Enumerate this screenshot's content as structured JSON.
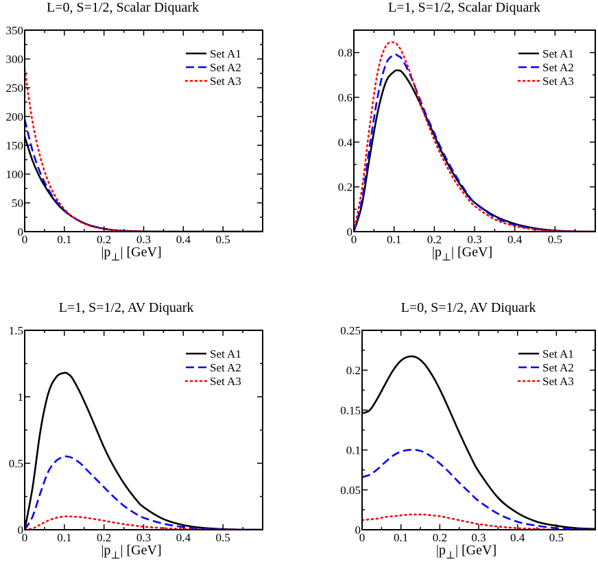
{
  "chart_data": [
    {
      "id": "p1",
      "type": "line",
      "title": "L=0, S=1/2, Scalar Diquark",
      "xlabel": "|p⊥| [GeV]",
      "ylabel": "",
      "xlim": [
        0,
        0.6
      ],
      "ylim": [
        0,
        350
      ],
      "xticks": [
        0,
        0.1,
        0.2,
        0.3,
        0.4,
        0.5
      ],
      "yticks": [
        0,
        50,
        100,
        150,
        200,
        250,
        300,
        350
      ],
      "ytick_labels": [
        "0",
        "50",
        "100",
        "150",
        "200",
        "250",
        "300",
        "350"
      ],
      "legend_position": "top-right",
      "x": [
        0,
        0.02,
        0.04,
        0.06,
        0.08,
        0.1,
        0.12,
        0.14,
        0.16,
        0.18,
        0.2,
        0.22,
        0.24,
        0.26,
        0.28,
        0.3,
        0.35,
        0.4,
        0.5,
        0.6
      ],
      "series": [
        {
          "name": "Set A1",
          "color": "#000000",
          "dash": "solid",
          "values": [
            165,
            123,
            92,
            69,
            50,
            36,
            26,
            18,
            12,
            8,
            5,
            3,
            1.9,
            1.2,
            0.7,
            0.4,
            0.1,
            0.03,
            0,
            0
          ]
        },
        {
          "name": "Set A2",
          "color": "#0000ff",
          "dash": "dashed",
          "values": [
            195,
            140,
            101,
            73,
            52,
            37,
            26,
            18,
            12,
            8,
            5,
            3,
            1.8,
            1.1,
            0.6,
            0.3,
            0.1,
            0.02,
            0,
            0
          ]
        },
        {
          "name": "Set A3",
          "color": "#ff0000",
          "dash": "dotted",
          "values": [
            282,
            190,
            128,
            86,
            58,
            39,
            26,
            17,
            11,
            7,
            4.5,
            2.8,
            1.6,
            0.9,
            0.5,
            0.25,
            0.05,
            0.01,
            0,
            0
          ]
        }
      ]
    },
    {
      "id": "p2",
      "type": "line",
      "title": "L=1, S=1/2, Scalar Diquark",
      "xlabel": "|p⊥| [GeV]",
      "ylabel": "",
      "xlim": [
        0,
        0.6
      ],
      "ylim": [
        0,
        0.9
      ],
      "xticks": [
        0,
        0.1,
        0.2,
        0.3,
        0.4,
        0.5
      ],
      "yticks": [
        0,
        0.2,
        0.4,
        0.6,
        0.8
      ],
      "ytick_labels": [
        "0",
        "0.2",
        "0.4",
        "0.6",
        "0.8"
      ],
      "legend_position": "top-right",
      "x": [
        0,
        0.02,
        0.04,
        0.06,
        0.08,
        0.1,
        0.11,
        0.12,
        0.14,
        0.16,
        0.18,
        0.2,
        0.22,
        0.25,
        0.28,
        0.3,
        0.35,
        0.4,
        0.45,
        0.5,
        0.55,
        0.6
      ],
      "series": [
        {
          "name": "Set A1",
          "color": "#000000",
          "dash": "solid",
          "values": [
            0,
            0.12,
            0.34,
            0.54,
            0.67,
            0.715,
            0.72,
            0.712,
            0.66,
            0.59,
            0.51,
            0.43,
            0.35,
            0.25,
            0.17,
            0.13,
            0.07,
            0.035,
            0.015,
            0.005,
            0.001,
            0
          ]
        },
        {
          "name": "Set A2",
          "color": "#0000ff",
          "dash": "dashed",
          "values": [
            0,
            0.14,
            0.39,
            0.61,
            0.75,
            0.79,
            0.785,
            0.77,
            0.7,
            0.61,
            0.52,
            0.44,
            0.36,
            0.26,
            0.175,
            0.13,
            0.065,
            0.03,
            0.012,
            0.004,
            0.001,
            0
          ]
        },
        {
          "name": "Set A3",
          "color": "#ff0000",
          "dash": "dotted",
          "values": [
            0,
            0.19,
            0.48,
            0.72,
            0.83,
            0.845,
            0.83,
            0.8,
            0.71,
            0.6,
            0.5,
            0.41,
            0.33,
            0.23,
            0.155,
            0.115,
            0.055,
            0.025,
            0.01,
            0.003,
            0.001,
            0
          ]
        }
      ]
    },
    {
      "id": "p3",
      "type": "line",
      "title": "L=1, S=1/2, AV Diquark",
      "xlabel": "|p⊥| [GeV]",
      "ylabel": "",
      "xlim": [
        0,
        0.6
      ],
      "ylim": [
        0,
        1.5
      ],
      "xticks": [
        0,
        0.1,
        0.2,
        0.3,
        0.4,
        0.5
      ],
      "yticks": [
        0,
        0.5,
        1,
        1.5
      ],
      "ytick_labels": [
        "0",
        "0.5",
        "1",
        "1.5"
      ],
      "legend_position": "top-right",
      "x": [
        0,
        0.02,
        0.04,
        0.06,
        0.08,
        0.1,
        0.11,
        0.12,
        0.14,
        0.16,
        0.18,
        0.2,
        0.22,
        0.25,
        0.28,
        0.3,
        0.35,
        0.4,
        0.45,
        0.5,
        0.55,
        0.6
      ],
      "series": [
        {
          "name": "Set A1",
          "color": "#000000",
          "dash": "solid",
          "values": [
            0,
            0.32,
            0.75,
            1.03,
            1.15,
            1.18,
            1.17,
            1.14,
            1.03,
            0.9,
            0.76,
            0.62,
            0.5,
            0.35,
            0.23,
            0.17,
            0.08,
            0.035,
            0.014,
            0.005,
            0.001,
            0
          ]
        },
        {
          "name": "Set A2",
          "color": "#0000ff",
          "dash": "dashed",
          "values": [
            0,
            0.1,
            0.28,
            0.44,
            0.52,
            0.55,
            0.549,
            0.54,
            0.5,
            0.44,
            0.38,
            0.32,
            0.26,
            0.18,
            0.12,
            0.09,
            0.045,
            0.02,
            0.008,
            0.003,
            0.001,
            0
          ]
        },
        {
          "name": "Set A3",
          "color": "#ff0000",
          "dash": "dotted",
          "values": [
            0,
            0.01,
            0.04,
            0.07,
            0.09,
            0.1,
            0.1,
            0.099,
            0.095,
            0.088,
            0.078,
            0.068,
            0.057,
            0.042,
            0.03,
            0.023,
            0.012,
            0.006,
            0.002,
            0.001,
            0,
            0
          ]
        }
      ]
    },
    {
      "id": "p4",
      "type": "line",
      "title": "L=0, S=1/2, AV Diquark",
      "xlabel": "|p⊥| [GeV]",
      "ylabel": "",
      "xlim": [
        0,
        0.6
      ],
      "ylim": [
        0,
        0.25
      ],
      "xticks": [
        0,
        0.1,
        0.2,
        0.3,
        0.4,
        0.5
      ],
      "yticks": [
        0,
        0.05,
        0.1,
        0.15,
        0.2,
        0.25
      ],
      "ytick_labels": [
        "0",
        "0.05",
        "0.1",
        "0.15",
        "0.2",
        "0.25"
      ],
      "legend_position": "top-right",
      "x": [
        0,
        0.02,
        0.04,
        0.06,
        0.08,
        0.1,
        0.12,
        0.14,
        0.16,
        0.18,
        0.2,
        0.22,
        0.25,
        0.28,
        0.3,
        0.35,
        0.4,
        0.45,
        0.5,
        0.55,
        0.6
      ],
      "series": [
        {
          "name": "Set A1",
          "color": "#000000",
          "dash": "solid",
          "values": [
            0.146,
            0.15,
            0.165,
            0.183,
            0.2,
            0.212,
            0.217,
            0.216,
            0.208,
            0.194,
            0.176,
            0.155,
            0.122,
            0.091,
            0.073,
            0.04,
            0.021,
            0.01,
            0.005,
            0.002,
            0.001
          ]
        },
        {
          "name": "Set A2",
          "color": "#0000ff",
          "dash": "dashed",
          "values": [
            0.066,
            0.069,
            0.076,
            0.085,
            0.093,
            0.098,
            0.1,
            0.1,
            0.097,
            0.091,
            0.083,
            0.074,
            0.059,
            0.045,
            0.036,
            0.02,
            0.01,
            0.005,
            0.002,
            0.001,
            0
          ]
        },
        {
          "name": "Set A3",
          "color": "#ff0000",
          "dash": "dotted",
          "values": [
            0.012,
            0.013,
            0.014,
            0.016,
            0.017,
            0.018,
            0.019,
            0.019,
            0.019,
            0.018,
            0.017,
            0.015,
            0.012,
            0.009,
            0.007,
            0.004,
            0.002,
            0.001,
            0,
            0,
            0
          ]
        }
      ]
    }
  ]
}
